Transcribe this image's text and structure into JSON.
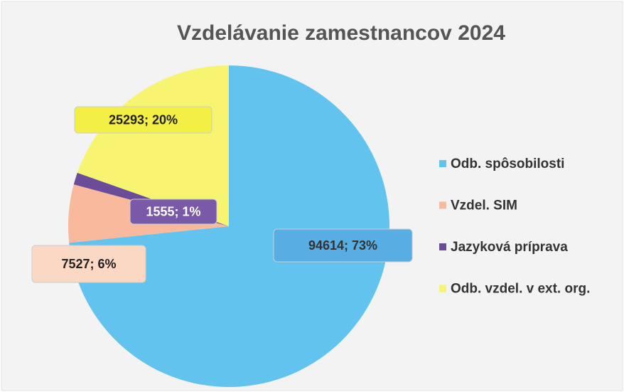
{
  "chart_data": {
    "type": "pie",
    "title": "Vzdelávanie zamestnancov 2024",
    "categories": [
      "Odb. spôsobilosti",
      "Vzdel. SIM",
      "Jazyková príprava",
      "Odb. vzdel. v ext. org."
    ],
    "values": [
      94614,
      7527,
      1555,
      25293
    ],
    "value_labels": [
      "94614; 73%",
      "7527; 6%",
      "1555; 1%",
      "25293; 20%"
    ],
    "colors": [
      "#62c3ee",
      "#f8b99c",
      "#6a4c99",
      "#f6f471"
    ],
    "legend": "right"
  }
}
